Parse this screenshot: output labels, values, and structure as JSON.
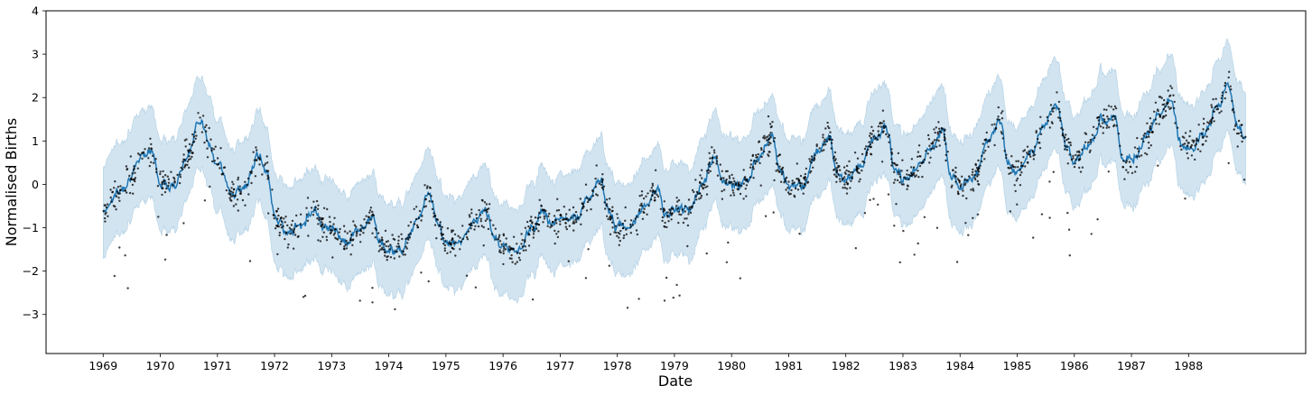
{
  "chart_data": {
    "type": "line",
    "xlabel": "Date",
    "ylabel": "Normalised Births",
    "xlim": [
      1968.0,
      1990.05
    ],
    "ylim": [
      -3.9,
      4.0
    ],
    "grid": false,
    "x_ticks": [
      1969,
      1970,
      1971,
      1972,
      1973,
      1974,
      1975,
      1976,
      1977,
      1978,
      1979,
      1980,
      1981,
      1982,
      1983,
      1984,
      1985,
      1986,
      1987,
      1988
    ],
    "x_tick_labels": [
      "1969",
      "1970",
      "1971",
      "1972",
      "1973",
      "1974",
      "1975",
      "1976",
      "1977",
      "1978",
      "1979",
      "1980",
      "1981",
      "1982",
      "1983",
      "1984",
      "1985",
      "1986",
      "1987",
      "1988"
    ],
    "y_ticks": [
      -3,
      -2,
      -1,
      0,
      1,
      2,
      3,
      4
    ],
    "y_tick_labels": [
      "−3",
      "−2",
      "−1",
      "0",
      "1",
      "2",
      "3",
      "4"
    ],
    "colors": {
      "mean": "#1f77b4",
      "band": "#1f77b4",
      "points": "#000000"
    },
    "series": [
      {
        "role": "posterior-mean",
        "x": [
          1969.0,
          1969.25,
          1969.5,
          1969.7,
          1969.85,
          1970.0,
          1970.25,
          1970.5,
          1970.7,
          1970.85,
          1971.0,
          1971.25,
          1971.5,
          1971.7,
          1971.85,
          1972.0,
          1972.25,
          1972.5,
          1972.7,
          1972.85,
          1973.0,
          1973.25,
          1973.5,
          1973.7,
          1973.85,
          1974.0,
          1974.25,
          1974.5,
          1974.7,
          1974.85,
          1975.0,
          1975.25,
          1975.5,
          1975.7,
          1975.85,
          1976.0,
          1976.25,
          1976.5,
          1976.7,
          1976.85,
          1977.0,
          1977.25,
          1977.5,
          1977.7,
          1977.85,
          1978.0,
          1978.25,
          1978.5,
          1978.7,
          1978.85,
          1979.0,
          1979.25,
          1979.5,
          1979.7,
          1979.85,
          1980.0,
          1980.25,
          1980.5,
          1980.7,
          1980.85,
          1981.0,
          1981.25,
          1981.5,
          1981.7,
          1981.85,
          1982.0,
          1982.25,
          1982.5,
          1982.7,
          1982.85,
          1983.0,
          1983.25,
          1983.5,
          1983.7,
          1983.85,
          1984.0,
          1984.25,
          1984.5,
          1984.7,
          1984.85,
          1985.0,
          1985.25,
          1985.5,
          1985.7,
          1985.85,
          1986.0,
          1986.25,
          1986.5,
          1986.7,
          1986.85,
          1987.0,
          1987.25,
          1987.5,
          1987.7,
          1987.85,
          1988.0,
          1988.25,
          1988.5,
          1988.7,
          1988.85,
          1989.0
        ],
        "y": [
          -0.6,
          -0.2,
          0.2,
          0.75,
          0.75,
          0.05,
          0.0,
          0.75,
          1.55,
          0.9,
          0.5,
          -0.2,
          -0.05,
          0.65,
          0.35,
          -0.7,
          -1.15,
          -0.85,
          -0.55,
          -0.95,
          -1.0,
          -1.3,
          -1.05,
          -0.75,
          -1.35,
          -1.55,
          -1.45,
          -0.75,
          -0.2,
          -0.9,
          -1.35,
          -1.35,
          -0.85,
          -0.6,
          -1.25,
          -1.45,
          -1.55,
          -1.0,
          -0.65,
          -0.85,
          -0.8,
          -0.85,
          -0.3,
          0.15,
          -0.6,
          -1.0,
          -0.95,
          -0.45,
          -0.1,
          -0.75,
          -0.6,
          -0.55,
          0.0,
          0.65,
          0.05,
          -0.05,
          0.05,
          0.75,
          1.1,
          0.35,
          -0.05,
          0.0,
          0.75,
          1.1,
          0.3,
          0.1,
          0.45,
          1.05,
          1.35,
          0.4,
          0.1,
          0.35,
          0.9,
          1.2,
          0.2,
          -0.05,
          0.2,
          1.0,
          1.55,
          0.45,
          0.3,
          0.75,
          1.45,
          1.8,
          0.9,
          0.55,
          0.9,
          1.45,
          1.65,
          0.5,
          0.55,
          1.1,
          1.65,
          1.95,
          1.0,
          0.8,
          1.1,
          1.8,
          2.3,
          1.3,
          1.1
        ]
      }
    ],
    "band_halfwidth": 1.05
  }
}
